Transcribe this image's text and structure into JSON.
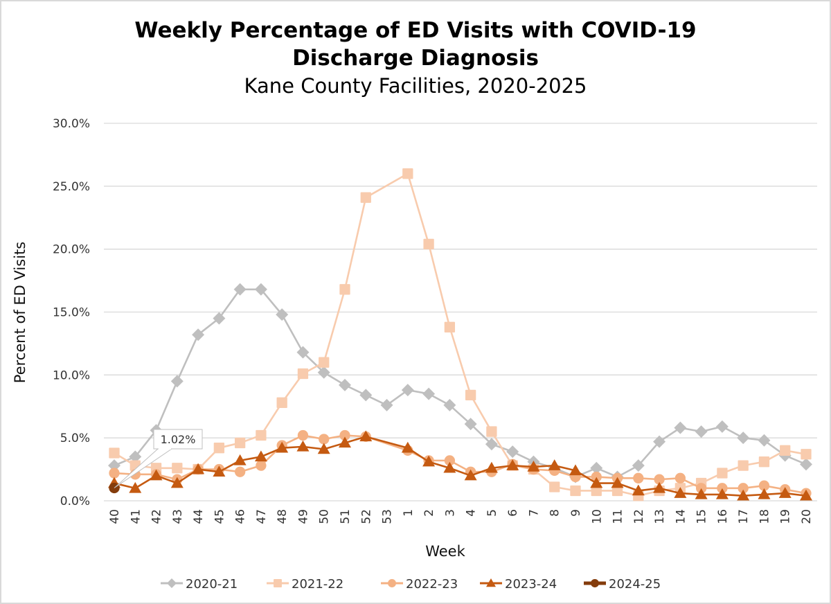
{
  "chart_data": {
    "type": "line",
    "title": "Weekly Percentage of ED Visits with COVID-19 Discharge Diagnosis",
    "title_lines": [
      "Weekly Percentage of ED Visits with COVID-19",
      "Discharge Diagnosis"
    ],
    "subtitle": "Kane County Facilities, 2020-2025",
    "xlabel": "Week",
    "ylabel": "Percent of ED Visits",
    "ylim": [
      0,
      30
    ],
    "yticks": [
      0,
      5,
      10,
      15,
      20,
      25,
      30
    ],
    "ytick_labels": [
      "0.0%",
      "5.0%",
      "10.0%",
      "15.0%",
      "20.0%",
      "25.0%",
      "30.0%"
    ],
    "grid": true,
    "legend_position": "bottom",
    "categories": [
      "40",
      "41",
      "42",
      "43",
      "44",
      "45",
      "46",
      "47",
      "48",
      "49",
      "50",
      "51",
      "52",
      "53",
      "1",
      "2",
      "3",
      "4",
      "5",
      "6",
      "7",
      "8",
      "9",
      "10",
      "11",
      "12",
      "13",
      "14",
      "15",
      "16",
      "17",
      "18",
      "19",
      "20"
    ],
    "series": [
      {
        "name": "2020-21",
        "color": "#bfbfbf",
        "marker": "diamond",
        "values": [
          2.8,
          3.5,
          5.6,
          9.5,
          13.2,
          14.5,
          16.8,
          16.8,
          14.8,
          11.8,
          10.2,
          9.2,
          8.4,
          7.6,
          8.8,
          8.5,
          7.6,
          6.1,
          4.5,
          3.9,
          3.1,
          2.6,
          1.9,
          2.6,
          1.9,
          2.8,
          4.7,
          5.8,
          5.5,
          5.9,
          5.0,
          4.8,
          3.6,
          2.9
        ]
      },
      {
        "name": "2021-22",
        "color": "#f8cbad",
        "marker": "square",
        "values": [
          3.8,
          2.8,
          2.6,
          2.6,
          2.5,
          4.2,
          4.6,
          5.2,
          7.8,
          10.1,
          11.0,
          16.8,
          24.1,
          null,
          26.0,
          20.4,
          13.8,
          8.4,
          5.5,
          2.8,
          2.5,
          1.1,
          0.8,
          0.8,
          0.8,
          0.4,
          0.8,
          1.0,
          1.4,
          2.2,
          2.8,
          3.1,
          4.0,
          3.7
        ]
      },
      {
        "name": "2022-23",
        "color": "#f4b183",
        "marker": "circle",
        "values": [
          2.2,
          2.1,
          2.1,
          1.7,
          2.5,
          2.5,
          2.3,
          2.8,
          4.4,
          5.2,
          4.9,
          5.2,
          5.1,
          null,
          4.0,
          3.2,
          3.2,
          2.3,
          2.3,
          2.9,
          2.5,
          2.4,
          1.9,
          1.9,
          1.8,
          1.8,
          1.7,
          1.8,
          1.0,
          1.0,
          1.0,
          1.2,
          0.9,
          0.6
        ]
      },
      {
        "name": "2023-24",
        "color": "#c55a11",
        "marker": "triangle",
        "values": [
          1.4,
          1.0,
          2.0,
          1.4,
          2.5,
          2.3,
          3.2,
          3.5,
          4.2,
          4.3,
          4.1,
          4.6,
          5.1,
          null,
          4.2,
          3.1,
          2.6,
          2.0,
          2.6,
          2.8,
          2.7,
          2.8,
          2.4,
          1.4,
          1.4,
          0.8,
          1.0,
          0.6,
          0.5,
          0.5,
          0.4,
          0.5,
          0.6,
          0.4
        ]
      },
      {
        "name": "2024-25",
        "color": "#843c0c",
        "marker": "circle",
        "values": [
          1.02
        ]
      }
    ],
    "annotations": [
      {
        "series": "2024-25",
        "category": "40",
        "label": "1.02%"
      }
    ]
  }
}
